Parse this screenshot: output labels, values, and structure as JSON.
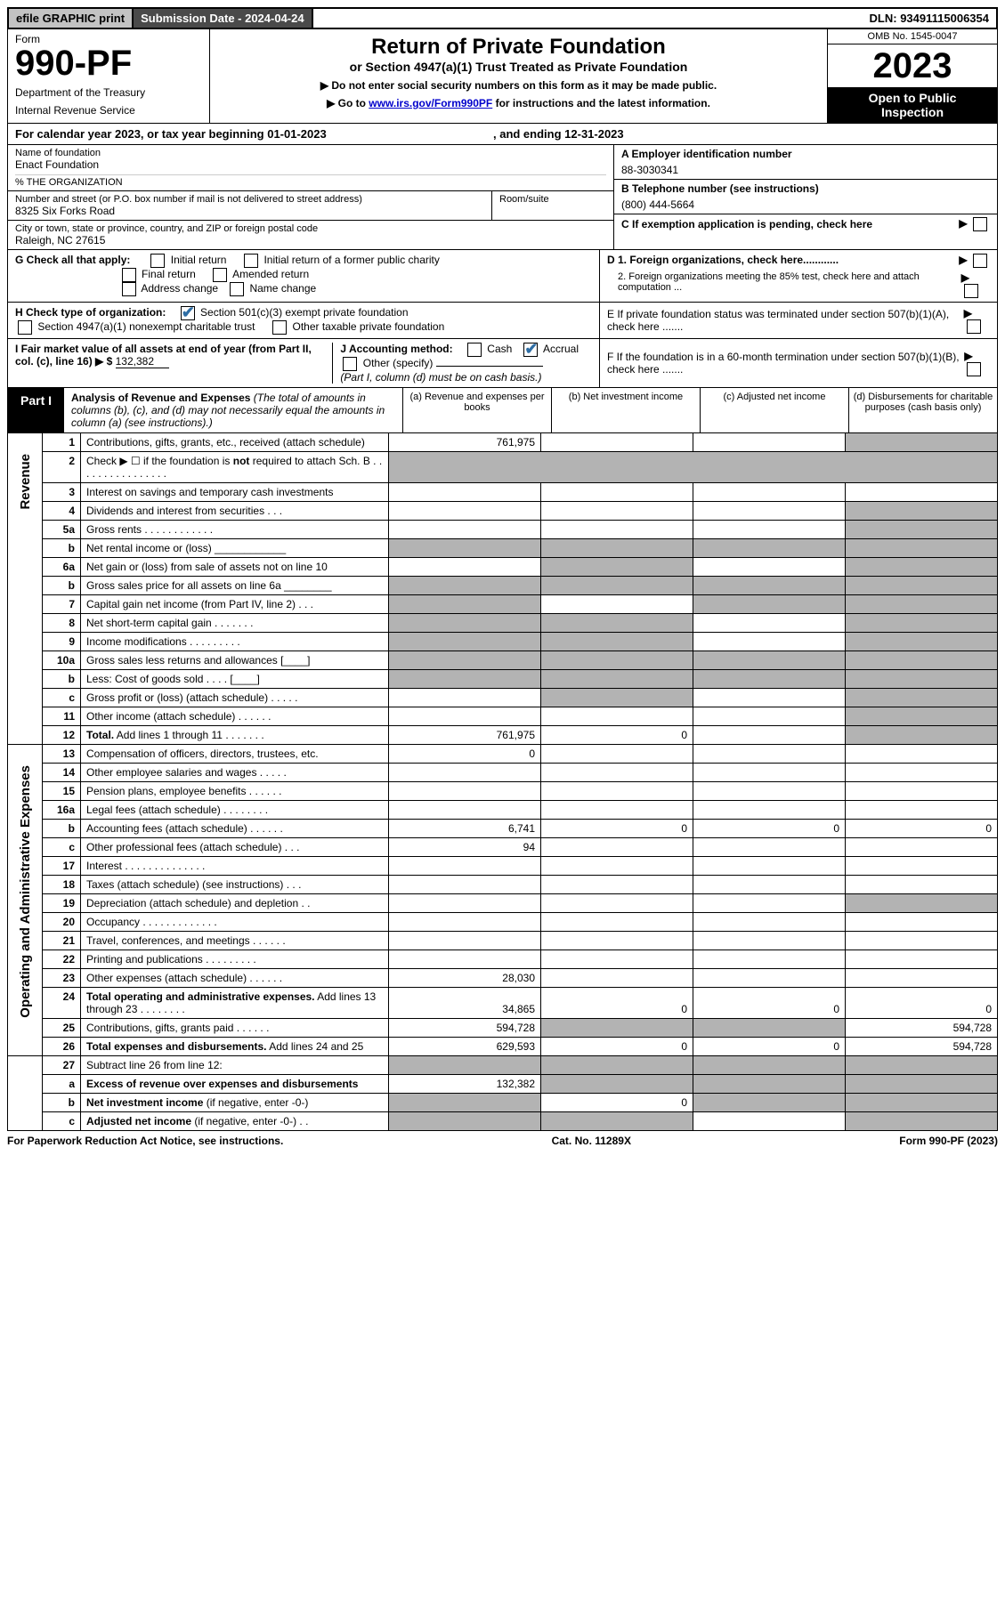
{
  "topbar": {
    "efile": "efile GRAPHIC print",
    "submission": "Submission Date - 2024-04-24",
    "dln": "DLN: 93491115006354"
  },
  "header": {
    "form_label": "Form",
    "form_no": "990-PF",
    "dept1": "Department of the Treasury",
    "dept2": "Internal Revenue Service",
    "title": "Return of Private Foundation",
    "subtitle": "or Section 4947(a)(1) Trust Treated as Private Foundation",
    "note1": "▶ Do not enter social security numbers on this form as it may be made public.",
    "note2_pre": "▶ Go to ",
    "note2_link": "www.irs.gov/Form990PF",
    "note2_post": " for instructions and the latest information.",
    "omb": "OMB No. 1545-0047",
    "year": "2023",
    "otp1": "Open to Public",
    "otp2": "Inspection"
  },
  "cal": {
    "text": "For calendar year 2023, or tax year beginning 01-01-2023",
    "ending": ", and ending 12-31-2023"
  },
  "id": {
    "name_label": "Name of foundation",
    "name": "Enact Foundation",
    "care": "% THE ORGANIZATION",
    "addr_label": "Number and street (or P.O. box number if mail is not delivered to street address)",
    "addr": "8325 Six Forks Road",
    "room_label": "Room/suite",
    "city_label": "City or town, state or province, country, and ZIP or foreign postal code",
    "city": "Raleigh, NC  27615",
    "a_label": "A Employer identification number",
    "a_val": "88-3030341",
    "b_label": "B Telephone number (see instructions)",
    "b_val": "(800) 444-5664",
    "c_label": "C If exemption application is pending, check here"
  },
  "checks": {
    "g_label": "G Check all that apply:",
    "g_items": [
      "Initial return",
      "Initial return of a former public charity",
      "Final return",
      "Amended return",
      "Address change",
      "Name change"
    ],
    "h_label": "H Check type of organization:",
    "h1": "Section 501(c)(3) exempt private foundation",
    "h2": "Section 4947(a)(1) nonexempt charitable trust",
    "h3": "Other taxable private foundation",
    "i_label": "I Fair market value of all assets at end of year (from Part II, col. (c), line 16) ▶ $",
    "i_val": "132,382",
    "j_label": "J Accounting method:",
    "j_cash": "Cash",
    "j_accrual": "Accrual",
    "j_other": "Other (specify)",
    "j_note": "(Part I, column (d) must be on cash basis.)",
    "d1": "D 1. Foreign organizations, check here............",
    "d2": "2. Foreign organizations meeting the 85% test, check here and attach computation ...",
    "e": "E  If private foundation status was terminated under section 507(b)(1)(A), check here .......",
    "f": "F  If the foundation is in a 60-month termination under section 507(b)(1)(B), check here .......",
    "arrow": "▶"
  },
  "part1": {
    "tag": "Part I",
    "title": "Analysis of Revenue and Expenses",
    "note": " (The total of amounts in columns (b), (c), and (d) may not necessarily equal the amounts in column (a) (see instructions).)",
    "cols": {
      "a": "(a)   Revenue and expenses per books",
      "b": "(b)   Net investment income",
      "c": "(c)   Adjusted net income",
      "d": "(d)   Disbursements for charitable purposes (cash basis only)"
    }
  },
  "sections": {
    "rev": "Revenue",
    "opex": "Operating and Administrative Expenses"
  },
  "rows": [
    {
      "ln": "1",
      "txt": "Contributions, gifts, grants, etc., received (attach schedule)",
      "a": "761,975",
      "d_shade": true
    },
    {
      "ln": "2",
      "txt": "Check ▶ ☐ if the foundation is <b>not</b> required to attach Sch. B  . . . . . . . . . . . . . . . .",
      "no_amt": true
    },
    {
      "ln": "3",
      "txt": "Interest on savings and temporary cash investments"
    },
    {
      "ln": "4",
      "txt": "Dividends and interest from securities   . . .",
      "d_shade": true
    },
    {
      "ln": "5a",
      "txt": "Gross rents   . . . . . . . . . . . .",
      "d_shade": true
    },
    {
      "ln": "b",
      "txt": "Net rental income or (loss) ____________",
      "a_shade": true,
      "b_shade": true,
      "c_shade": true,
      "d_shade": true
    },
    {
      "ln": "6a",
      "txt": "Net gain or (loss) from sale of assets not on line 10",
      "b_shade": true,
      "d_shade": true
    },
    {
      "ln": "b",
      "txt": "Gross sales price for all assets on line 6a ________",
      "a_shade": true,
      "b_shade": true,
      "c_shade": true,
      "d_shade": true
    },
    {
      "ln": "7",
      "txt": "Capital gain net income (from Part IV, line 2)  . . .",
      "a_shade": true,
      "c_shade": true,
      "d_shade": true
    },
    {
      "ln": "8",
      "txt": "Net short-term capital gain  . . . . . . .",
      "a_shade": true,
      "b_shade": true,
      "d_shade": true
    },
    {
      "ln": "9",
      "txt": "Income modifications . . . . . . . . .",
      "a_shade": true,
      "b_shade": true,
      "d_shade": true
    },
    {
      "ln": "10a",
      "txt": "Gross sales less returns and allowances  [____]",
      "a_shade": true,
      "b_shade": true,
      "c_shade": true,
      "d_shade": true
    },
    {
      "ln": "b",
      "txt": "Less: Cost of goods sold   . . . .  [____]",
      "a_shade": true,
      "b_shade": true,
      "c_shade": true,
      "d_shade": true
    },
    {
      "ln": "c",
      "txt": "Gross profit or (loss) (attach schedule)   . . . . .",
      "b_shade": true,
      "d_shade": true
    },
    {
      "ln": "11",
      "txt": "Other income (attach schedule)   . . . . . .",
      "d_shade": true
    },
    {
      "ln": "12",
      "txt": "<b>Total.</b> Add lines 1 through 11  . . . . . . .",
      "a": "761,975",
      "b": "0",
      "d_shade": true
    }
  ],
  "exprows": [
    {
      "ln": "13",
      "txt": "Compensation of officers, directors, trustees, etc.",
      "a": "0"
    },
    {
      "ln": "14",
      "txt": "Other employee salaries and wages   . . . . ."
    },
    {
      "ln": "15",
      "txt": "Pension plans, employee benefits  . . . . . ."
    },
    {
      "ln": "16a",
      "txt": "Legal fees (attach schedule) . . . . . . . ."
    },
    {
      "ln": "b",
      "txt": "Accounting fees (attach schedule) . . . . . .",
      "a": "6,741",
      "b": "0",
      "c": "0",
      "d": "0"
    },
    {
      "ln": "c",
      "txt": "Other professional fees (attach schedule)   . . .",
      "a": "94"
    },
    {
      "ln": "17",
      "txt": "Interest . . . . . . . . . . . . . ."
    },
    {
      "ln": "18",
      "txt": "Taxes (attach schedule) (see instructions)   . . ."
    },
    {
      "ln": "19",
      "txt": "Depreciation (attach schedule) and depletion   . .",
      "d_shade": true
    },
    {
      "ln": "20",
      "txt": "Occupancy . . . . . . . . . . . . ."
    },
    {
      "ln": "21",
      "txt": "Travel, conferences, and meetings . . . . . ."
    },
    {
      "ln": "22",
      "txt": "Printing and publications . . . . . . . . ."
    },
    {
      "ln": "23",
      "txt": "Other expenses (attach schedule) . . . . . .",
      "a": "28,030"
    },
    {
      "ln": "24",
      "txt": "<b>Total operating and administrative expenses.</b> Add lines 13 through 23  . . . . . . . .",
      "a": "34,865",
      "b": "0",
      "c": "0",
      "d": "0"
    },
    {
      "ln": "25",
      "txt": "Contributions, gifts, grants paid   . . . . . .",
      "a": "594,728",
      "b_shade": true,
      "c_shade": true,
      "d": "594,728"
    },
    {
      "ln": "26",
      "txt": "<b>Total expenses and disbursements.</b> Add lines 24 and 25",
      "a": "629,593",
      "b": "0",
      "c": "0",
      "d": "594,728"
    }
  ],
  "netrows": [
    {
      "ln": "27",
      "txt": "Subtract line 26 from line 12:",
      "a_shade": true,
      "b_shade": true,
      "c_shade": true,
      "d_shade": true
    },
    {
      "ln": "a",
      "txt": "<b>Excess of revenue over expenses and disbursements</b>",
      "a": "132,382",
      "b_shade": true,
      "c_shade": true,
      "d_shade": true
    },
    {
      "ln": "b",
      "txt": "<b>Net investment income</b> (if negative, enter -0-)",
      "a_shade": true,
      "b": "0",
      "c_shade": true,
      "d_shade": true
    },
    {
      "ln": "c",
      "txt": "<b>Adjusted net income</b> (if negative, enter -0-)  . .",
      "a_shade": true,
      "b_shade": true,
      "d_shade": true
    }
  ],
  "footer": {
    "left": "For Paperwork Reduction Act Notice, see instructions.",
    "mid": "Cat. No. 11289X",
    "right": "Form 990-PF (2023)"
  }
}
